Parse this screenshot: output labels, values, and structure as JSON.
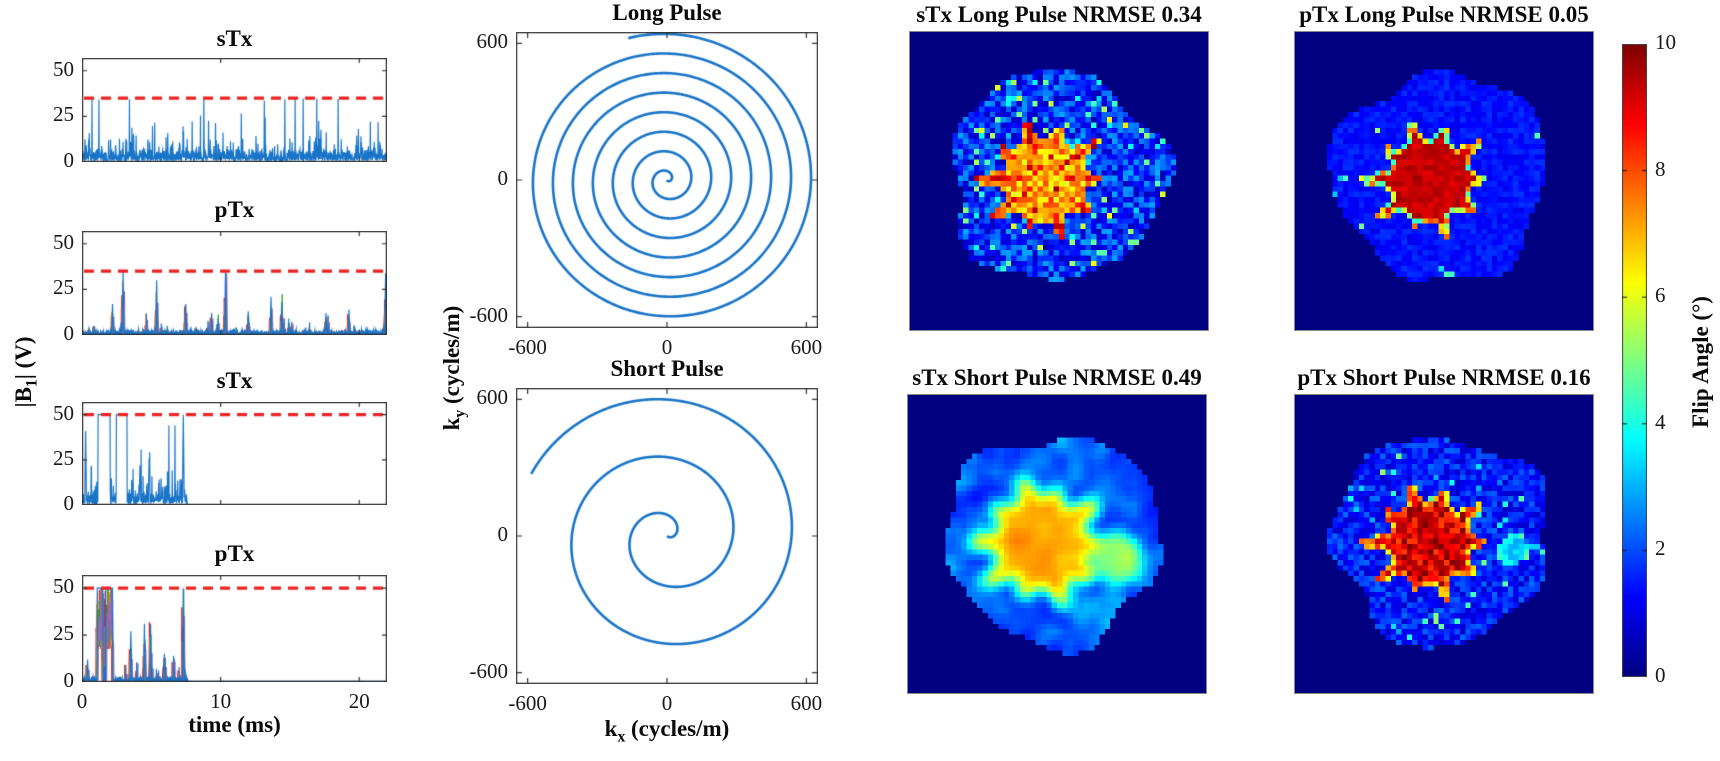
{
  "figure_type": "scientific_figure",
  "colors": {
    "signal_blue": "#1874c8",
    "threshold_red": "#ee2222",
    "channel_colors": [
      "#d62728",
      "#ff8c1a",
      "#2ca02c",
      "#9467bd"
    ],
    "axis_color": "#333333",
    "map_background_navy": "#000080",
    "colorbar_colormap": "jet"
  },
  "chart_data": {
    "b1_plots": {
      "type": "line",
      "xlabel": "time (ms)",
      "ylabel": "|B1| (V)",
      "ylabel_parts": {
        "pre": "|B",
        "sub": "1",
        "post": "| (V)"
      },
      "xlim": [
        0,
        22
      ],
      "ylim": [
        0,
        57
      ],
      "xticks": [
        0,
        10,
        20
      ],
      "yticks": [
        0,
        25,
        50
      ],
      "plots": [
        {
          "title": "sTx",
          "style": "dense",
          "threshold_v": 35,
          "peak_v": 35,
          "duration_ms": 22
        },
        {
          "title": "pTx",
          "style": "sparse",
          "threshold_v": 35,
          "peak_v": 35,
          "duration_ms": 22,
          "events": [
            [
              0.1,
              17
            ],
            [
              0.135,
              34.5
            ],
            [
              0.245,
              30
            ],
            [
              0.34,
              17
            ],
            [
              0.425,
              12
            ],
            [
              0.47,
              34.5
            ],
            [
              0.545,
              13
            ],
            [
              0.62,
              21
            ],
            [
              0.655,
              18
            ],
            [
              0.8,
              12
            ],
            [
              0.875,
              14
            ],
            [
              0.995,
              34
            ]
          ]
        },
        {
          "title": "sTx",
          "style": "dense",
          "threshold_v": 50,
          "peak_v": 50,
          "duration_ms": 7.6,
          "events": [
            [
              0.012,
              41
            ],
            [
              0.145,
              29
            ],
            [
              0.19,
              22
            ],
            [
              0.22,
              26
            ],
            [
              0.332,
              50
            ]
          ],
          "plateaus": [
            [
              0.053,
              0.092
            ],
            [
              0.113,
              0.147
            ]
          ],
          "plateau_v": 50
        },
        {
          "title": "pTx",
          "style": "sparse",
          "threshold_v": 50,
          "peak_v": 50,
          "duration_ms": 7.6,
          "events": [
            [
              0.018,
              12
            ],
            [
              0.16,
              27
            ],
            [
              0.205,
              31
            ],
            [
              0.225,
              31
            ],
            [
              0.27,
              15
            ],
            [
              0.3,
              14
            ],
            [
              0.332,
              50
            ]
          ],
          "plateaus": [
            [
              0.05,
              0.068
            ],
            [
              0.078,
              0.1
            ]
          ],
          "plateau_v": 50
        }
      ]
    },
    "kspace_plots": {
      "type": "line",
      "xlabel": "kx (cycles/m)",
      "ylabel": "ky (cycles/m)",
      "xlabel_parts": {
        "pre": "k",
        "sub": "x",
        "post": " (cycles/m)"
      },
      "ylabel_parts": {
        "pre": "k",
        "sub": "y",
        "post": " (cycles/m)"
      },
      "xlim": [
        -650,
        650
      ],
      "ylim": [
        -650,
        650
      ],
      "xticks": [
        -600,
        0,
        600
      ],
      "yticks": [
        600,
        0,
        -600
      ],
      "plots": [
        {
          "title": "Long Pulse",
          "trajectory": "spiral",
          "turns": 7.5,
          "k_max": 645,
          "end_angle_deg": 105
        },
        {
          "title": "Short Pulse",
          "trajectory": "spiral",
          "turns": 2.55,
          "k_max": 645,
          "end_angle_deg": 155
        }
      ]
    },
    "flip_angle_maps": {
      "type": "heatmap",
      "value_units": "degrees",
      "range": [
        0,
        10
      ],
      "plots": [
        {
          "title": "sTx Long Pulse NRMSE 0.34",
          "tx_mode": "sTx",
          "pulse": "Long",
          "nrmse": 0.34,
          "head_mean": 1.7,
          "head_spread": 1.2,
          "speckle": 0.08,
          "star_mean": 7.0,
          "star_spread": 1.1,
          "tip_boost": 1.6,
          "smear": 0
        },
        {
          "title": "pTx Long Pulse NRMSE 0.05",
          "tx_mode": "pTx",
          "pulse": "Long",
          "nrmse": 0.05,
          "head_mean": 1.4,
          "head_spread": 0.35,
          "speckle": 0.01,
          "star_mean": 9.3,
          "star_spread": 0.35,
          "tip_boost": 0,
          "fringe": [
            4.0,
            8.0
          ],
          "smear": 0
        },
        {
          "title": "sTx Short Pulse NRMSE 0.49",
          "tx_mode": "sTx",
          "pulse": "Short",
          "nrmse": 0.49,
          "head_mean": 1.8,
          "head_spread": 1.5,
          "speckle": 0.13,
          "star_mean": 6.9,
          "star_spread": 1.1,
          "tip_boost": 0.7,
          "star_scale": 1.12,
          "smear": 2,
          "blob": {
            "x": 0.4,
            "y": 0.1,
            "r": 0.17,
            "v": 5.2
          }
        },
        {
          "title": "pTx Short Pulse NRMSE 0.16",
          "tx_mode": "pTx",
          "pulse": "Short",
          "nrmse": 0.16,
          "head_mean": 1.5,
          "head_spread": 0.8,
          "speckle": 0.04,
          "star_mean": 9.1,
          "star_spread": 1.0,
          "tip_boost": 0,
          "fringe": [
            6.0,
            8.5
          ],
          "smear": 0,
          "blob": {
            "x": 0.46,
            "y": 0.04,
            "r": 0.1,
            "v": 3.6
          }
        }
      ]
    },
    "colorbar": {
      "label": "Flip Angle (°)",
      "min": 0,
      "max": 10,
      "ticks": [
        0,
        2,
        4,
        6,
        8,
        10
      ],
      "colormap": "jet"
    }
  }
}
